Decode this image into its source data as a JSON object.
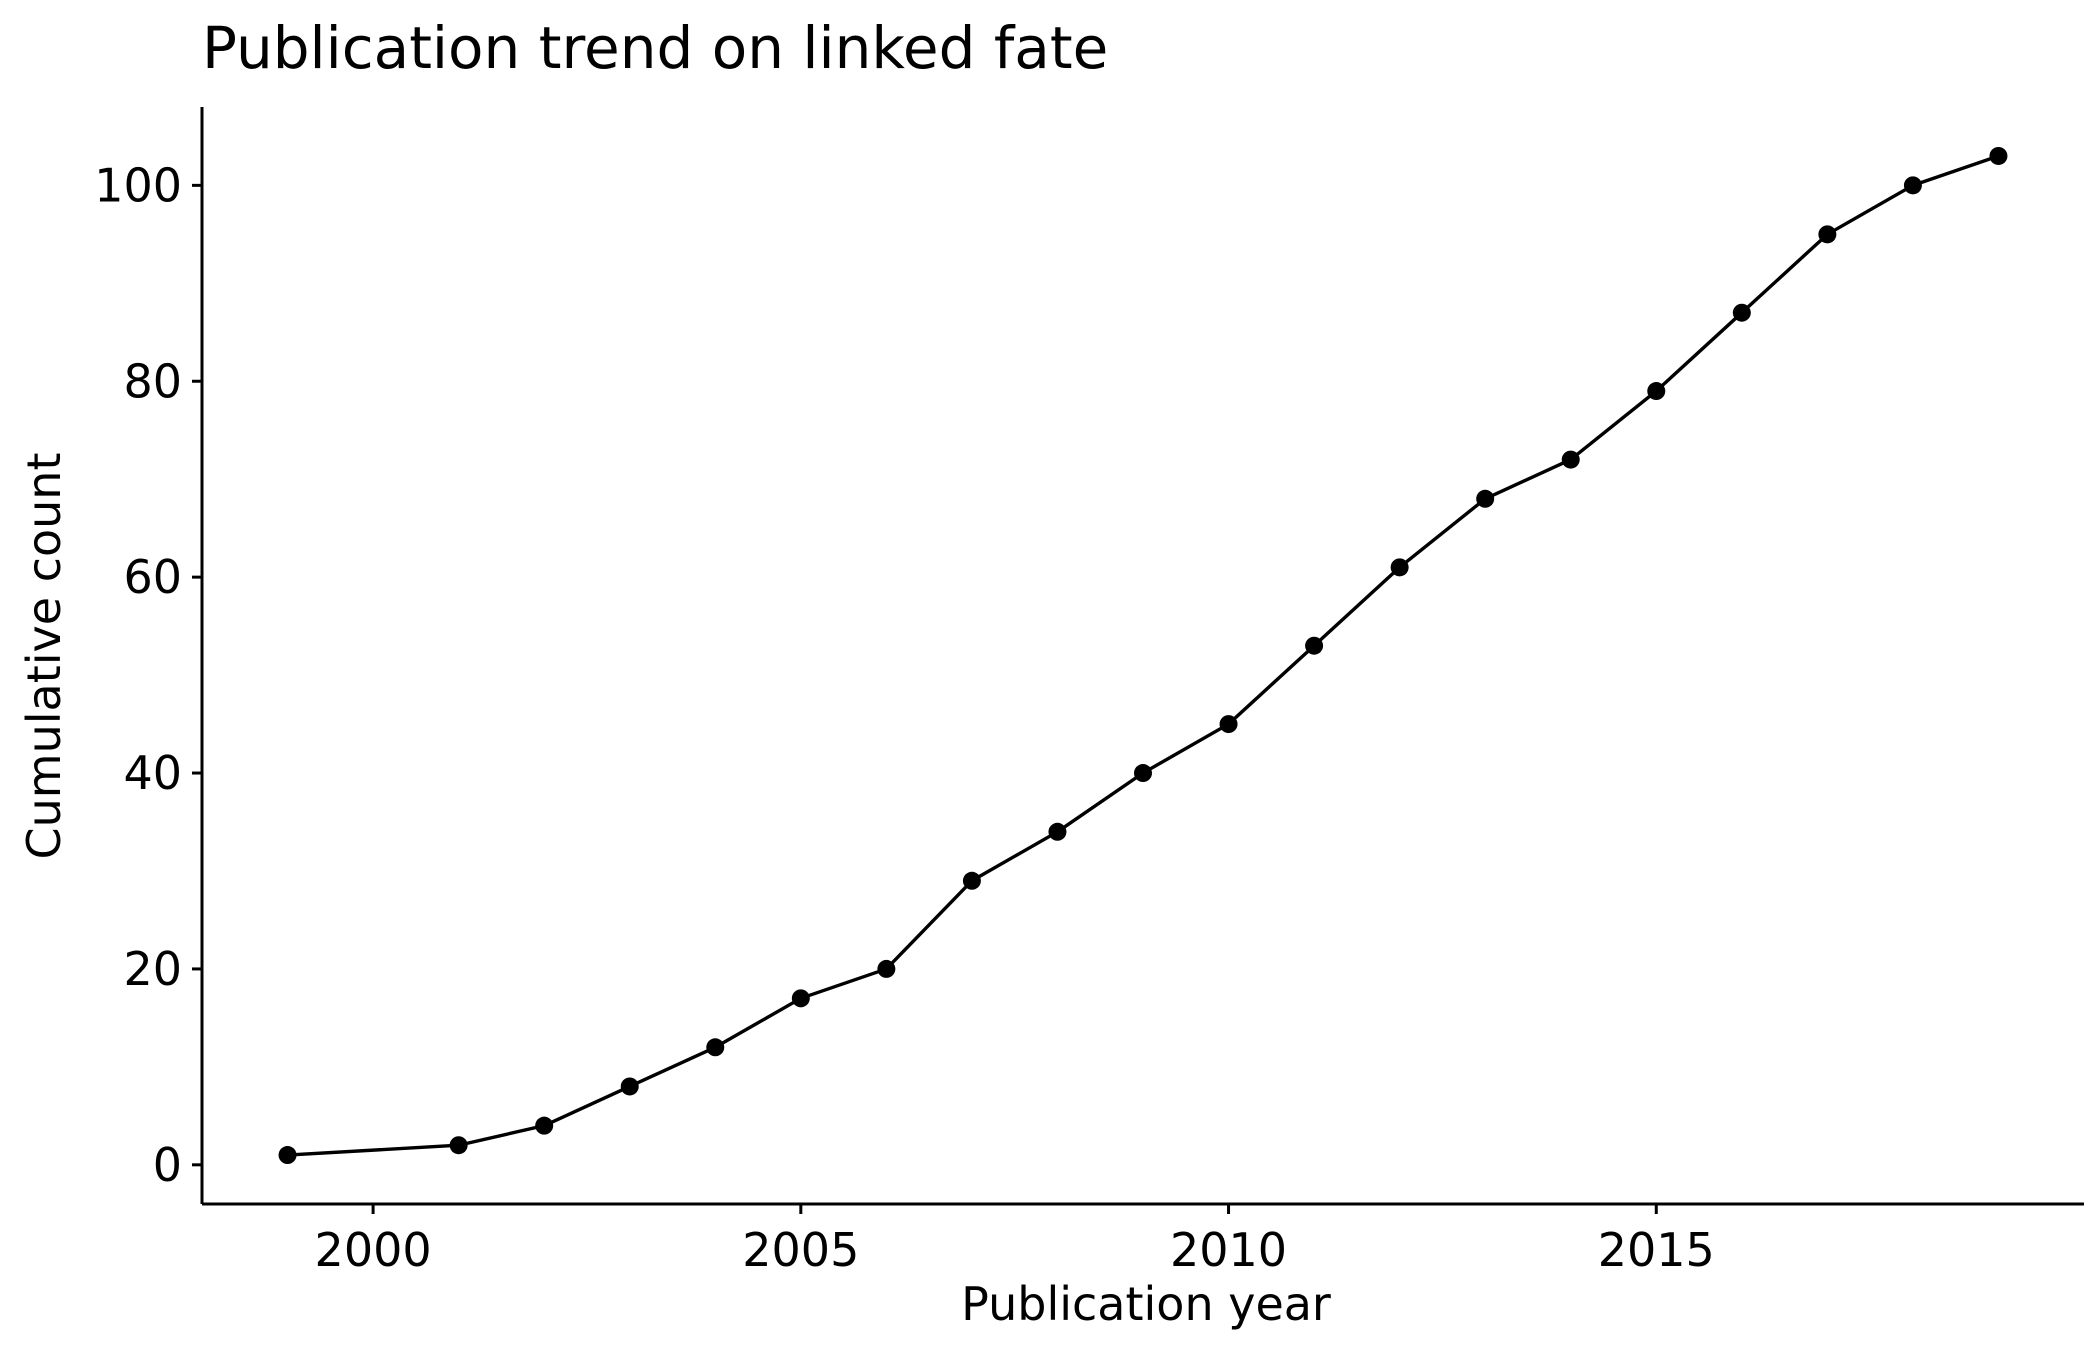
{
  "chart_data": {
    "type": "line",
    "title": "Publication trend on linked fate",
    "xlabel": "Publication year",
    "ylabel": "Cumulative count",
    "xlim": [
      1998,
      2020
    ],
    "ylim": [
      -4,
      108
    ],
    "xticks": [
      2000,
      2005,
      2010,
      2015
    ],
    "yticks": [
      0,
      20,
      40,
      60,
      80,
      100
    ],
    "grid": false,
    "legend": "none",
    "colors": {
      "line": "#000000",
      "point": "#000000",
      "axis": "#000000"
    },
    "series": [
      {
        "x": [
          1999,
          2001,
          2002,
          2003,
          2004,
          2005,
          2006,
          2007,
          2008,
          2009,
          2010,
          2011,
          2012,
          2013,
          2014,
          2015,
          2016,
          2017,
          2018,
          2019
        ],
        "values": [
          1,
          2,
          4,
          8,
          12,
          17,
          20,
          29,
          34,
          40,
          45,
          53,
          61,
          68,
          72,
          79,
          87,
          95,
          100,
          103
        ]
      }
    ]
  }
}
